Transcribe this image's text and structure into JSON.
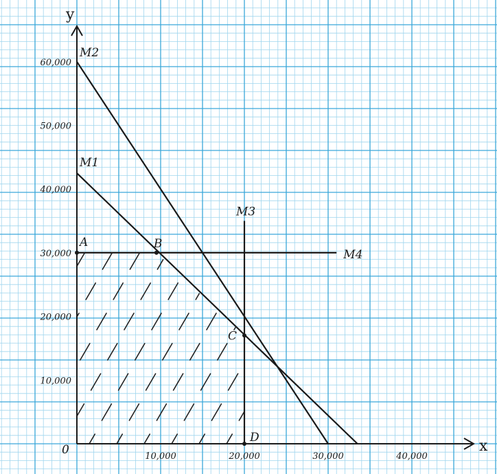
{
  "chart_data": {
    "type": "line",
    "axes": {
      "x_label": "x",
      "y_label": "y",
      "origin_label": "0",
      "xlim": [
        0,
        50000
      ],
      "ylim": [
        0,
        66000
      ],
      "x_ticks": [
        {
          "value": 10000,
          "label": "10,000"
        },
        {
          "value": 20000,
          "label": "20,000"
        },
        {
          "value": 30000,
          "label": "30,000"
        },
        {
          "value": 40000,
          "label": "40,000"
        }
      ],
      "y_ticks": [
        {
          "value": 10000,
          "label": "10,000"
        },
        {
          "value": 20000,
          "label": "20,000"
        },
        {
          "value": 30000,
          "label": "30,000"
        },
        {
          "value": 40000,
          "label": "40,000"
        },
        {
          "value": 50000,
          "label": "50,000"
        },
        {
          "value": 60000,
          "label": "60,000"
        }
      ],
      "grid": true,
      "grid_color": "#3aa7d9",
      "minor_grid_color": "#9fd5ee"
    },
    "series": [
      {
        "name": "M1",
        "points": [
          [
            0,
            42500
          ],
          [
            33500,
            0
          ]
        ]
      },
      {
        "name": "M2",
        "points": [
          [
            0,
            60000
          ],
          [
            30000,
            0
          ]
        ]
      },
      {
        "name": "M3",
        "points": [
          [
            20000,
            0
          ],
          [
            20000,
            35000
          ]
        ]
      },
      {
        "name": "M4",
        "points": [
          [
            0,
            30000
          ],
          [
            31000,
            30000
          ]
        ]
      }
    ],
    "points": [
      {
        "label": "A",
        "x": 0,
        "y": 30000
      },
      {
        "label": "B",
        "x": 9500,
        "y": 30000
      },
      {
        "label": "C",
        "x": 20000,
        "y": 17000
      },
      {
        "label": "D",
        "x": 20000,
        "y": 0
      }
    ],
    "feasible_region": {
      "vertices": [
        [
          0,
          0
        ],
        [
          0,
          30000
        ],
        [
          9500,
          30000
        ],
        [
          20000,
          17000
        ],
        [
          20000,
          0
        ]
      ],
      "hatched": true
    },
    "line_color": "#1a1a1a"
  }
}
